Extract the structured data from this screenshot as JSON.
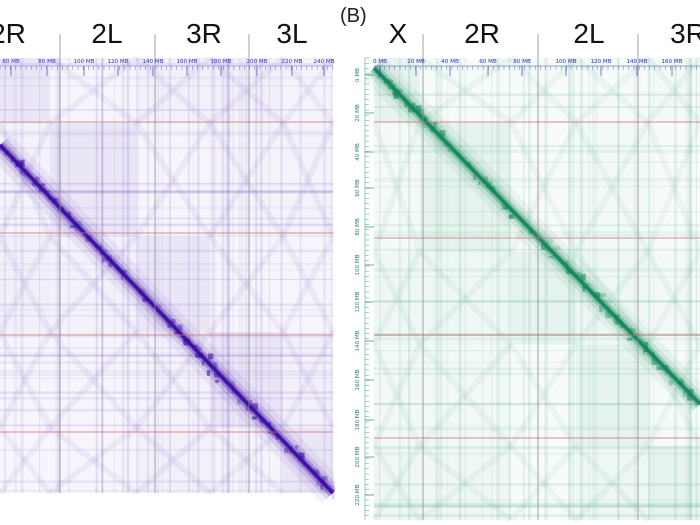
{
  "panels": [
    {
      "id": "A",
      "label": "",
      "chromosome_labels": [
        "2R",
        "2L",
        "3R",
        "3L"
      ],
      "x_tick_labels": [
        "60 MB",
        "80 MB",
        "100 MB",
        "120 MB",
        "140 MB",
        "160 MB",
        "180 MB",
        "200 MB",
        "220 MB",
        "240 MB"
      ],
      "y_tick_labels": [],
      "color": "#3a0ca3"
    },
    {
      "id": "B",
      "label": "(B)",
      "chromosome_labels": [
        "X",
        "2R",
        "2L",
        "3R"
      ],
      "x_tick_labels": [
        "0 MB",
        "20 MB",
        "40 MB",
        "60 MB",
        "80 MB",
        "100 MB",
        "120 MB",
        "140 MB",
        "160 MB"
      ],
      "y_tick_labels": [
        "0 MB",
        "20 MB",
        "40 MB",
        "60 MB",
        "80 MB",
        "100 MB",
        "120 MB",
        "140 MB",
        "160 MB",
        "180 MB",
        "200 MB",
        "220 MB"
      ],
      "color": "#12875a"
    }
  ]
}
